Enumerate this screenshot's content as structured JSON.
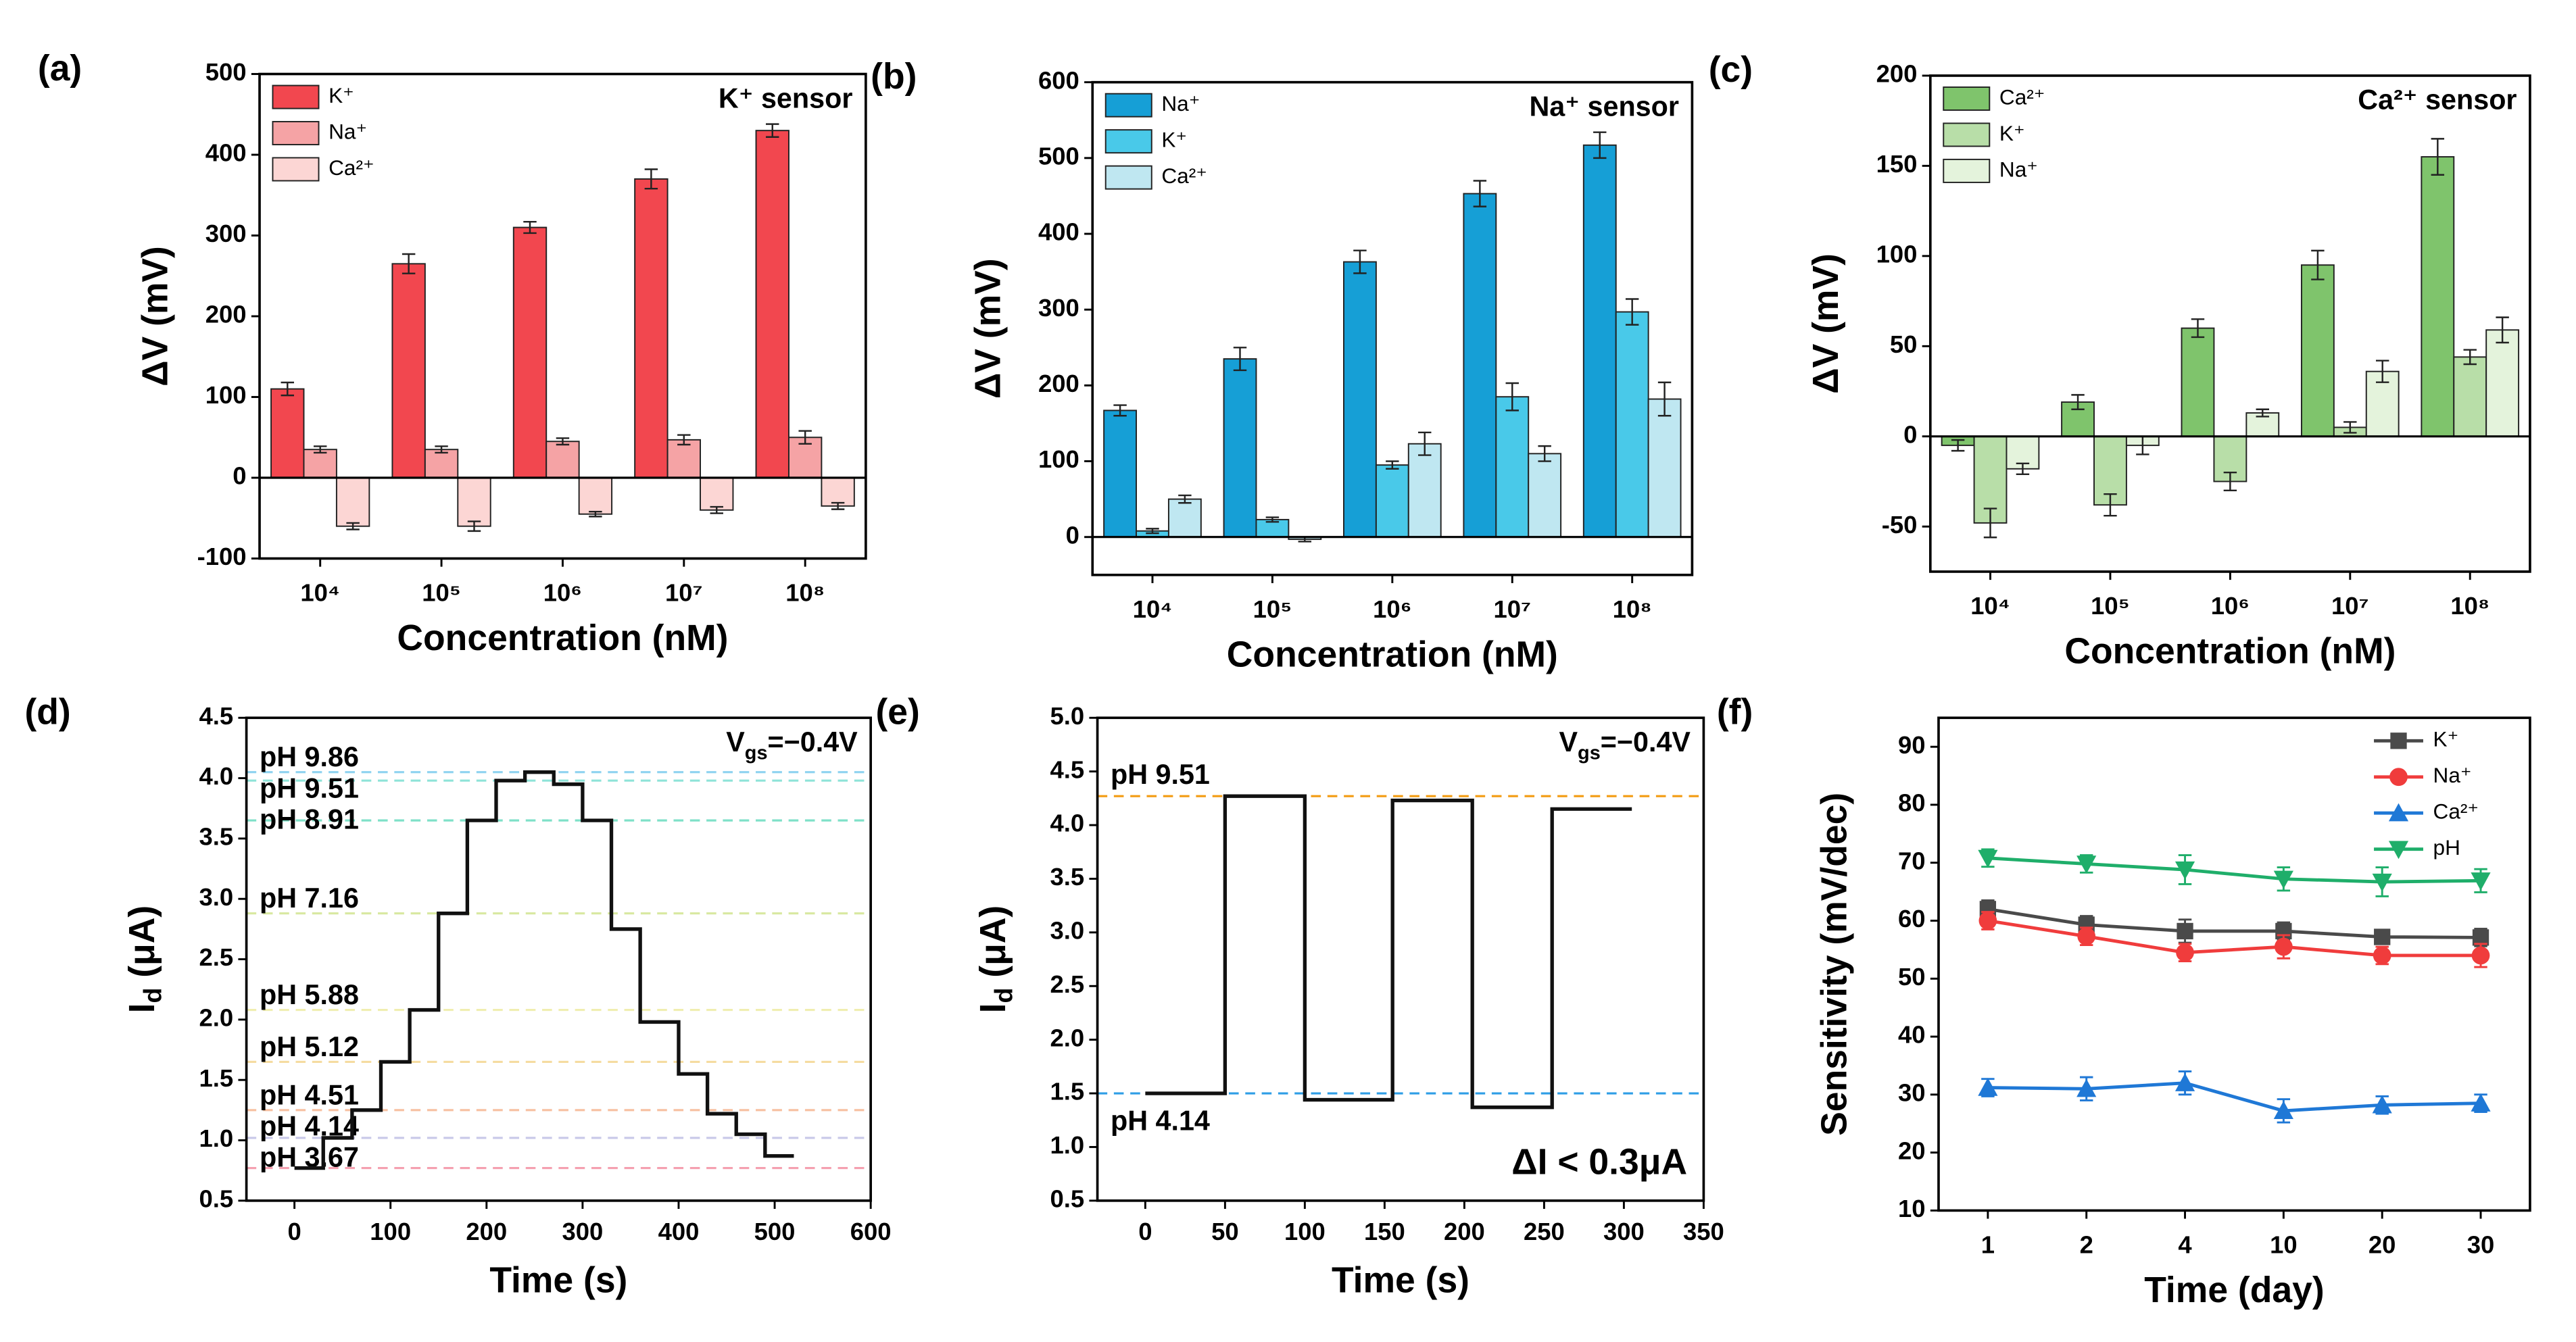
{
  "chart_data": [
    {
      "type": "bar",
      "panel_label": "(a)",
      "annotations": [
        "K⁺ sensor"
      ],
      "xlabel": "Concentration (nM)",
      "ylabel": "ΔV (mV)",
      "categories": [
        "10⁴",
        "10⁵",
        "10⁶",
        "10⁷",
        "10⁸"
      ],
      "series": [
        {
          "name": "K⁺",
          "color": "#f2474f",
          "values": [
            110,
            265,
            310,
            370,
            430
          ],
          "errors": [
            8,
            12,
            7,
            12,
            8
          ]
        },
        {
          "name": "Na⁺",
          "color": "#f5a3a5",
          "values": [
            35,
            35,
            45,
            47,
            50
          ],
          "errors": [
            4,
            4,
            4,
            6,
            8
          ]
        },
        {
          "name": "Ca²⁺",
          "color": "#fcd6d4",
          "values": [
            -60,
            -60,
            -45,
            -40,
            -35
          ],
          "errors": [
            4,
            6,
            3,
            4,
            4
          ]
        }
      ],
      "ylim": [
        -100,
        500
      ],
      "yticks": [
        -100,
        0,
        100,
        200,
        300,
        400,
        500
      ],
      "legend": "upper left"
    },
    {
      "type": "bar",
      "panel_label": "(b)",
      "annotations": [
        "Na⁺ sensor"
      ],
      "xlabel": "Concentration (nM)",
      "ylabel": "ΔV (mV)",
      "categories": [
        "10⁴",
        "10⁵",
        "10⁶",
        "10⁷",
        "10⁸"
      ],
      "series": [
        {
          "name": "Na⁺",
          "color": "#169fd6",
          "values": [
            167,
            235,
            363,
            453,
            517
          ],
          "errors": [
            7,
            15,
            15,
            17,
            17
          ]
        },
        {
          "name": "K⁺",
          "color": "#49c9e9",
          "values": [
            8,
            23,
            95,
            185,
            297
          ],
          "errors": [
            3,
            3,
            5,
            18,
            17
          ]
        },
        {
          "name": "Ca²⁺",
          "color": "#bfe7f1",
          "values": [
            50,
            -3,
            123,
            110,
            182
          ],
          "errors": [
            5,
            3,
            15,
            10,
            22
          ]
        }
      ],
      "ylim": [
        -50,
        600
      ],
      "yticks": [
        0,
        100,
        200,
        300,
        400,
        500,
        600
      ],
      "legend": "upper left"
    },
    {
      "type": "bar",
      "panel_label": "(c)",
      "annotations": [
        "Ca²⁺ sensor"
      ],
      "xlabel": "Concentration (nM)",
      "ylabel": "ΔV (mV)",
      "categories": [
        "10⁴",
        "10⁵",
        "10⁶",
        "10⁷",
        "10⁸"
      ],
      "series": [
        {
          "name": "Ca²⁺",
          "color": "#7fc46c",
          "values": [
            -5,
            19,
            60,
            95,
            155
          ],
          "errors": [
            3,
            4,
            5,
            8,
            10
          ]
        },
        {
          "name": "K⁺",
          "color": "#b8dea8",
          "values": [
            -48,
            -38,
            -25,
            5,
            44
          ],
          "errors": [
            8,
            6,
            5,
            3,
            4
          ]
        },
        {
          "name": "Na⁺",
          "color": "#e4f3dc",
          "values": [
            -18,
            -5,
            13,
            36,
            59
          ],
          "errors": [
            3,
            5,
            2,
            6,
            7
          ]
        }
      ],
      "ylim": [
        -75,
        200
      ],
      "yticks": [
        -50,
        0,
        50,
        100,
        150,
        200
      ],
      "legend": "upper left"
    },
    {
      "type": "step",
      "panel_label": "(d)",
      "annotations": [
        {
          "text": "V",
          "sub": "gs",
          "rest": "=−0.4V"
        }
      ],
      "xlabel": "Time (s)",
      "ylabel": {
        "text": "I",
        "sub": "d",
        "rest": " (μA)"
      },
      "x": [
        0,
        30,
        30,
        60,
        60,
        90,
        90,
        120,
        120,
        150,
        150,
        180,
        180,
        210,
        210,
        240,
        240,
        270,
        270,
        300,
        300,
        330,
        330,
        360,
        360,
        400,
        400,
        430,
        430,
        460,
        460,
        490,
        490,
        520
      ],
      "series": [
        {
          "color": "#111111",
          "values": [
            0.77,
            0.77,
            1.02,
            1.02,
            1.25,
            1.25,
            1.65,
            1.65,
            2.08,
            2.08,
            2.88,
            2.88,
            3.65,
            3.65,
            3.98,
            3.98,
            4.05,
            4.05,
            3.95,
            3.95,
            3.65,
            3.65,
            2.75,
            2.75,
            1.98,
            1.98,
            1.55,
            1.55,
            1.22,
            1.22,
            1.05,
            1.05,
            0.87,
            0.87
          ]
        }
      ],
      "reference_lines": [
        {
          "label": "pH 9.86",
          "value": 4.05,
          "color": "#8fd3f0"
        },
        {
          "label": "pH 9.51",
          "value": 3.98,
          "color": "#8fe3d8"
        },
        {
          "label": "pH 8.91",
          "value": 3.65,
          "color": "#7fe0c8"
        },
        {
          "label": "pH 7.16",
          "value": 2.88,
          "color": "#d8e8a0"
        },
        {
          "label": "pH 5.88",
          "value": 2.08,
          "color": "#f0eeb0"
        },
        {
          "label": "pH 5.12",
          "value": 1.65,
          "color": "#f5dca0"
        },
        {
          "label": "pH 4.51",
          "value": 1.25,
          "color": "#f7c0a0"
        },
        {
          "label": "pH 4.14",
          "value": 1.02,
          "color": "#c8c8e8"
        },
        {
          "label": "pH 3.67",
          "value": 0.77,
          "color": "#f5a0b0"
        }
      ],
      "label_color": "#f39c12",
      "xlim": [
        -50,
        600
      ],
      "xticks": [
        0,
        100,
        200,
        300,
        400,
        500,
        600
      ],
      "ylim": [
        0.5,
        4.5
      ],
      "yticks": [
        0.5,
        {
          "value": 1,
          "label": "1.0"
        },
        1.5,
        {
          "value": 2,
          "label": "2.0"
        },
        2.5,
        {
          "value": 3,
          "label": "3.0"
        },
        3.5,
        {
          "value": 4,
          "label": "4.0"
        },
        4.5
      ]
    },
    {
      "type": "step",
      "panel_label": "(e)",
      "annotations": [
        {
          "text": "V",
          "sub": "gs",
          "rest": "=−0.4V"
        },
        "ΔI < 0.3μA"
      ],
      "xlabel": "Time (s)",
      "ylabel": {
        "text": "I",
        "sub": "d",
        "rest": " (μA)"
      },
      "x": [
        0,
        50,
        50,
        100,
        100,
        155,
        155,
        205,
        205,
        255,
        255,
        305
      ],
      "series": [
        {
          "color": "#111111",
          "values": [
            1.5,
            1.5,
            4.27,
            4.27,
            1.44,
            1.44,
            4.23,
            4.23,
            1.37,
            1.37,
            4.15,
            4.15
          ]
        }
      ],
      "reference_lines": [
        {
          "label": "pH 9.51",
          "value": 4.27,
          "color": "#f39c12"
        },
        {
          "label": "pH 4.14",
          "value": 1.5,
          "color": "#2e9ee6"
        }
      ],
      "xlim": [
        -30,
        350
      ],
      "xticks": [
        0,
        50,
        100,
        150,
        200,
        250,
        300,
        350
      ],
      "ylim": [
        0.5,
        5
      ],
      "yticks": [
        0.5,
        {
          "value": 1,
          "label": "1.0"
        },
        1.5,
        {
          "value": 2,
          "label": "2.0"
        },
        2.5,
        {
          "value": 3,
          "label": "3.0"
        },
        3.5,
        {
          "value": 4,
          "label": "4.0"
        },
        4.5,
        {
          "value": 5,
          "label": "5.0"
        }
      ]
    },
    {
      "type": "line",
      "panel_label": "(f)",
      "xlabel": "Time (day)",
      "ylabel": "Sensitivity (mV/dec)",
      "categories": [
        "1",
        "2",
        "4",
        "10",
        "20",
        "30"
      ],
      "series": [
        {
          "name": "K⁺",
          "color": "#4a4a4a",
          "marker": "square",
          "values": [
            62,
            59.3,
            58.2,
            58.2,
            57.2,
            57.1
          ],
          "errors": [
            1.5,
            1.5,
            2,
            1.5,
            1,
            1.5
          ]
        },
        {
          "name": "Na⁺",
          "color": "#f03c3c",
          "marker": "circle",
          "values": [
            60,
            57.3,
            54.5,
            55.5,
            54,
            54
          ],
          "errors": [
            1.5,
            1.5,
            1.5,
            2,
            1.5,
            2
          ]
        },
        {
          "name": "Ca²⁺",
          "color": "#1f78d6",
          "marker": "triangle",
          "values": [
            31.2,
            31,
            32,
            27.2,
            28.2,
            28.5
          ],
          "errors": [
            1.5,
            2,
            2,
            2,
            1.5,
            1.5
          ]
        },
        {
          "name": "pH",
          "color": "#1fae6a",
          "marker": "triangle-down",
          "values": [
            70.8,
            69.8,
            68.8,
            67.2,
            66.7,
            66.9
          ],
          "errors": [
            1.5,
            1.5,
            2.5,
            2,
            2.5,
            2
          ]
        }
      ],
      "ylim": [
        10,
        95
      ],
      "yticks": [
        10,
        20,
        30,
        40,
        50,
        60,
        70,
        80,
        90
      ],
      "legend": "upper right"
    }
  ]
}
